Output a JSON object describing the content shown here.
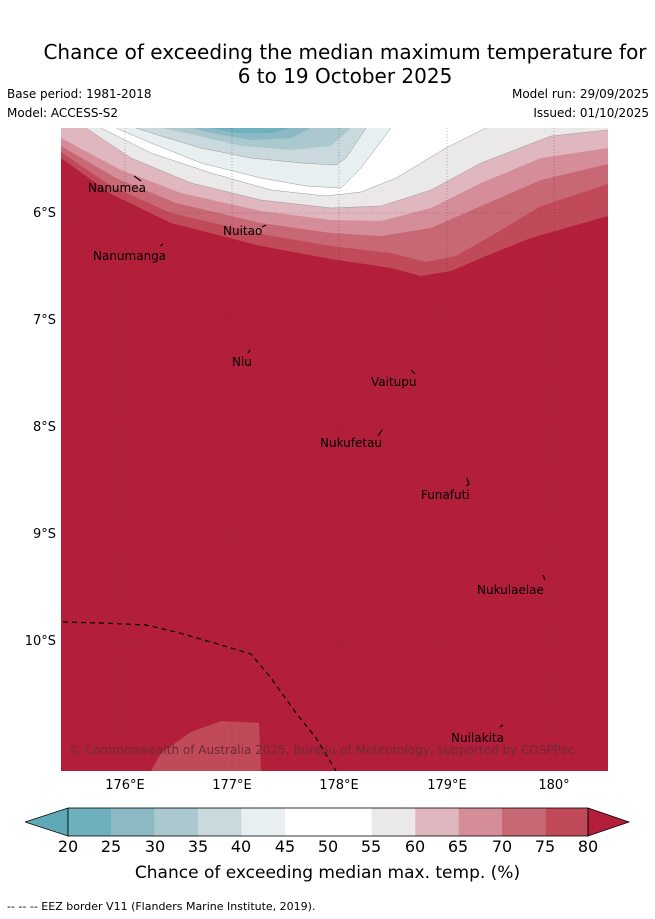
{
  "header": {
    "title_line1": "Chance of exceeding the median maximum temperature for",
    "title_line2": "6 to 19 October 2025",
    "base_period": "Base period: 1981-2018",
    "model": "Model: ACCESS-S2",
    "model_run": "Model run: 29/09/2025",
    "issued": "Issued: 01/10/2025"
  },
  "map": {
    "places": [
      {
        "name": "Nanumea"
      },
      {
        "name": "Nanumanga"
      },
      {
        "name": "Nuitao"
      },
      {
        "name": "Niu"
      },
      {
        "name": "Vaitupu"
      },
      {
        "name": "Nukufetau"
      },
      {
        "name": "Funafuti"
      },
      {
        "name": "Nukulaelae"
      },
      {
        "name": "Nuilakita"
      }
    ],
    "copyright": "© Commonwealth of Australia 2025, Bureau of Meteorology, supported by COSPPac",
    "lat_labels": [
      "6°S",
      "7°S",
      "8°S",
      "9°S",
      "10°S"
    ],
    "lon_labels": [
      "176°E",
      "177°E",
      "178°E",
      "179°E",
      "180°"
    ]
  },
  "colorbar": {
    "ticks": [
      "20",
      "25",
      "30",
      "35",
      "40",
      "45",
      "50",
      "55",
      "60",
      "65",
      "70",
      "75",
      "80"
    ],
    "colors": [
      "#5fa8b7",
      "#6eb0bd",
      "#8db9c4",
      "#aac8ce",
      "#c9d9de",
      "#e7eff1",
      "#ffffff",
      "#ffffff",
      "#ebe8ea",
      "#e0b7be",
      "#d58e99",
      "#c96875",
      "#c14a5a",
      "#b31e3a"
    ],
    "label": "Chance of exceeding median max. temp. (%)"
  },
  "footer": {
    "eez_note": "-- -- -- EEZ border V11 (Flanders Marine Institute, 2019)."
  }
}
